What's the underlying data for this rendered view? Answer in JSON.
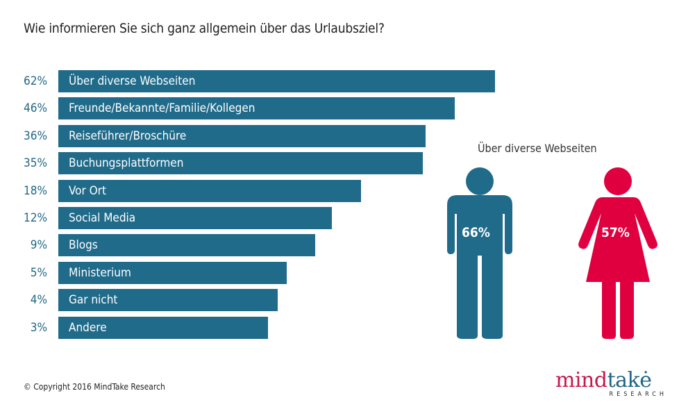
{
  "title": "Wie informieren Sie sich ganz allgemein über das Urlaubsziel?",
  "chart_data": {
    "type": "bar",
    "orientation": "horizontal",
    "title": "Wie informieren Sie sich ganz allgemein über das Urlaubsziel?",
    "categories": [
      "Über diverse Webseiten",
      "Freunde/Bekannte/Familie/Kollegen",
      "Reiseführer/Broschüre",
      "Buchungsplattformen",
      "Vor Ort",
      "Social Media",
      "Blogs",
      "Ministerium",
      "Gar nicht",
      "Andere"
    ],
    "values": [
      62,
      46,
      36,
      35,
      18,
      12,
      9,
      5,
      4,
      3
    ],
    "value_labels": [
      "62%",
      "46%",
      "36%",
      "35%",
      "18%",
      "12%",
      "9%",
      "5%",
      "4%",
      "3%"
    ],
    "unit": "%",
    "bar_color": "#216b8a",
    "grid": false
  },
  "side_panel": {
    "title": "Über diverse Webseiten",
    "male": {
      "value": 66,
      "label": "66%",
      "color": "#216b8a"
    },
    "female": {
      "value": 57,
      "label": "57%",
      "color": "#e0003f"
    }
  },
  "footer": {
    "copyright": "© Copyright 2016 MindTake Research",
    "logo_part1": "mind",
    "logo_part2": "takė",
    "logo_sub": "RESEARCH"
  }
}
